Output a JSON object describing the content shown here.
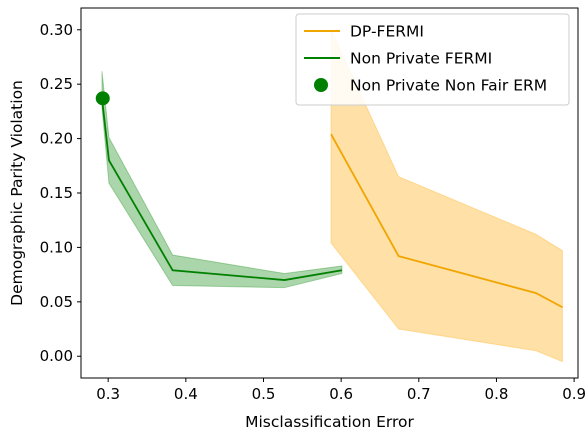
{
  "chart_data": {
    "type": "line",
    "title": "",
    "xlabel": "Misclassification Error",
    "ylabel": "Demographic Parity Violation",
    "xlim": [
      0.265,
      0.905
    ],
    "ylim": [
      -0.02,
      0.32
    ],
    "xticks": [
      0.3,
      0.4,
      0.5,
      0.6,
      0.7,
      0.8,
      0.9
    ],
    "xtick_labels": [
      "0.3",
      "0.4",
      "0.5",
      "0.6",
      "0.7",
      "0.8",
      "0.9"
    ],
    "yticks": [
      0.0,
      0.05,
      0.1,
      0.15,
      0.2,
      0.25,
      0.3
    ],
    "ytick_labels": [
      "0.00",
      "0.05",
      "0.10",
      "0.15",
      "0.20",
      "0.25",
      "0.30"
    ],
    "grid": false,
    "legend_position": "top-right",
    "series": [
      {
        "name": "DP-FERMI",
        "kind": "line-band",
        "color": "#f0a500",
        "band_color": "#ffa500",
        "points": [
          {
            "x": 0.587,
            "y": 0.204,
            "lo": 0.104,
            "hi": 0.3
          },
          {
            "x": 0.674,
            "y": 0.092,
            "lo": 0.025,
            "hi": 0.165
          },
          {
            "x": 0.851,
            "y": 0.058,
            "lo": 0.005,
            "hi": 0.112
          },
          {
            "x": 0.885,
            "y": 0.045,
            "lo": -0.005,
            "hi": 0.097
          }
        ]
      },
      {
        "name": "Non Private FERMI",
        "kind": "line-band",
        "color": "#008000",
        "band_color": "#008000",
        "points": [
          {
            "x": 0.292,
            "y": 0.237,
            "lo": 0.228,
            "hi": 0.262
          },
          {
            "x": 0.301,
            "y": 0.18,
            "lo": 0.159,
            "hi": 0.201
          },
          {
            "x": 0.383,
            "y": 0.079,
            "lo": 0.065,
            "hi": 0.093
          },
          {
            "x": 0.527,
            "y": 0.07,
            "lo": 0.063,
            "hi": 0.076
          },
          {
            "x": 0.601,
            "y": 0.079,
            "lo": 0.076,
            "hi": 0.083
          }
        ]
      },
      {
        "name": "Non Private Non Fair ERM",
        "kind": "marker",
        "color": "#008000",
        "points": [
          {
            "x": 0.293,
            "y": 0.237
          }
        ]
      }
    ]
  }
}
